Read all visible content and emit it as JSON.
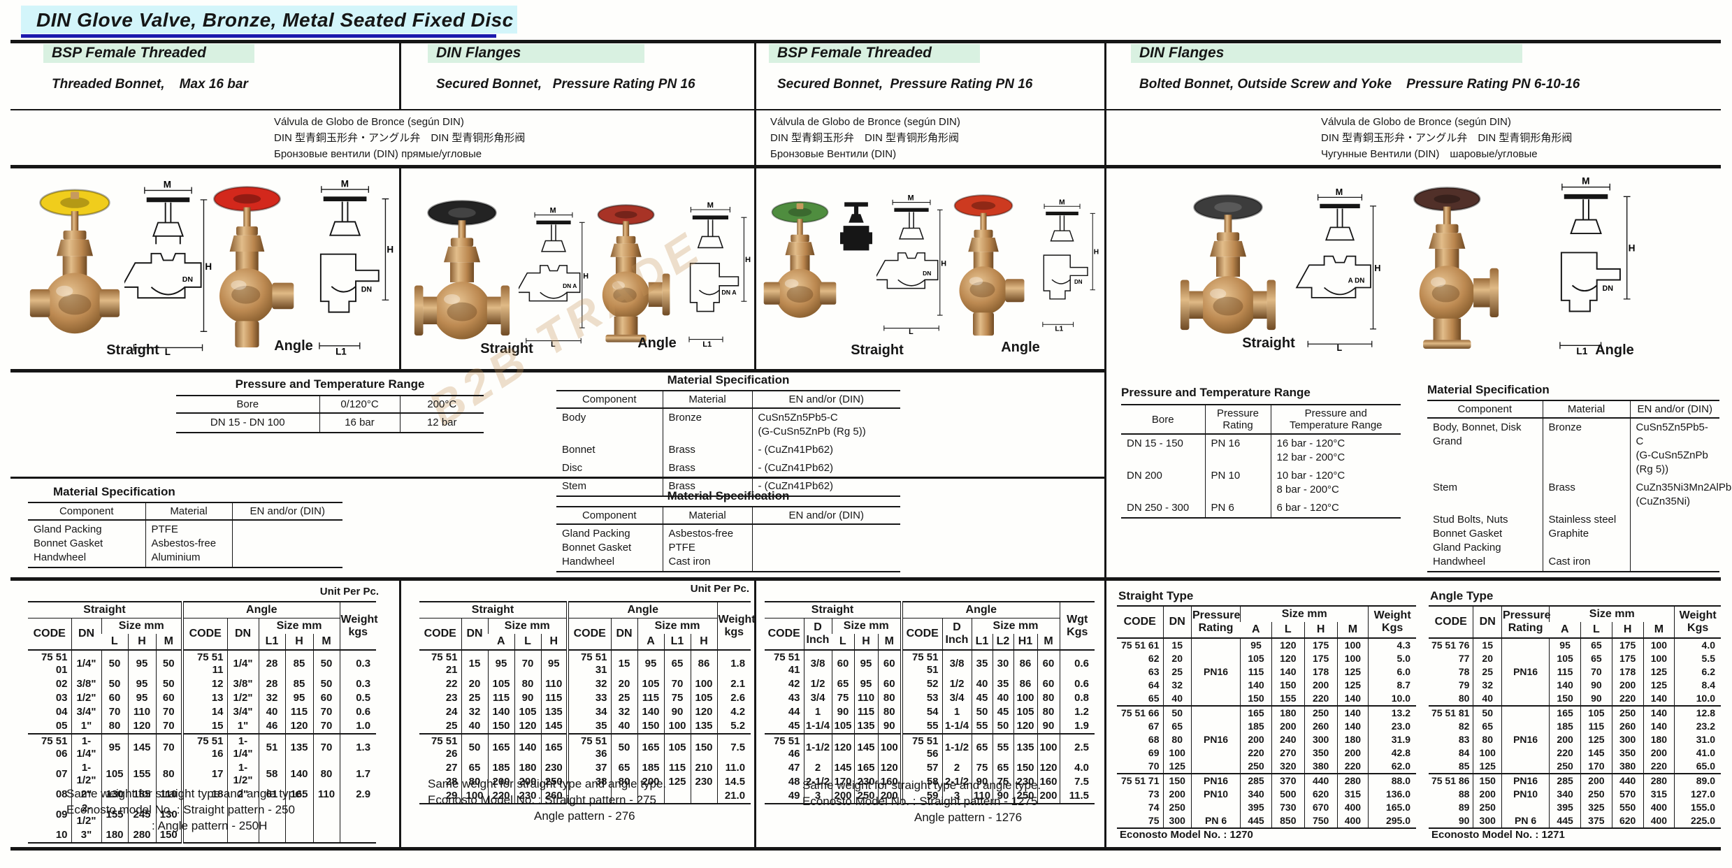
{
  "title": "DIN Glove Valve,  Bronze, Metal Seated Fixed Disc",
  "watermark": "B2B TRADE",
  "columns": [
    {
      "name": "BSP Female Threaded",
      "subtitle": "Threaded Bonnet,    Max 16 bar",
      "description": "Válvula de Globo de Bronce (según DIN)\nDIN 型青銅玉形弁・アングル弁　DIN 型青铜形角形阀\nБронзовые вентили (DIN) прямые/угловые",
      "figures": {
        "straight_caption": "Straight",
        "angle_caption": "Angle",
        "straight_wheel": "#f0cd1c",
        "angle_wheel": "#d3281c"
      },
      "drawing": {
        "s_m": "M",
        "s_h": "H",
        "s_l": "L",
        "s_dn": "DN",
        "a_m": "M",
        "a_h": "H",
        "a_l": "L1",
        "a_dn": "DN"
      },
      "pressure_temp": {
        "title": "Pressure and Temperature Range",
        "headers": [
          "Bore",
          "0/120°C",
          "200°C"
        ],
        "rows": [
          [
            "DN 15 - DN 100",
            "16 bar",
            "12 bar"
          ]
        ]
      },
      "material": {
        "title": "Material Specification",
        "headers": [
          "Component",
          "Material",
          "EN and/or (DIN)"
        ],
        "rows": [
          [
            "Gland Packing\nBonnet Gasket\nHandwheel",
            "PTFE\nAsbestos-free\nAluminium",
            " "
          ]
        ]
      },
      "unit_label": "Unit Per Pc.",
      "size_table": {
        "straight_label": "Straight",
        "angle_label": "Angle",
        "code_label": "CODE",
        "dn_label": "DN",
        "size_label": "Size mm",
        "s_cols": [
          "L",
          "H",
          "M"
        ],
        "a_cols": [
          "L1",
          "H",
          "M"
        ],
        "weight_label": "Weight\nkgs",
        "rows1": [
          [
            "75 51 01",
            "1/4\"",
            "50",
            "95",
            "50",
            "75 51 11",
            "1/4\"",
            "28",
            "85",
            "50",
            "0.3"
          ],
          [
            "02",
            "3/8\"",
            "50",
            "95",
            "50",
            "12",
            "3/8\"",
            "28",
            "85",
            "50",
            "0.3"
          ],
          [
            "03",
            "1/2\"",
            "60",
            "95",
            "60",
            "13",
            "1/2\"",
            "32",
            "95",
            "60",
            "0.5"
          ],
          [
            "04",
            "3/4\"",
            "70",
            "110",
            "70",
            "14",
            "3/4\"",
            "40",
            "115",
            "70",
            "0.6"
          ],
          [
            "05",
            "1\"",
            "80",
            "120",
            "70",
            "15",
            "1\"",
            "46",
            "120",
            "70",
            "1.0"
          ]
        ],
        "rows2": [
          [
            "75 51 06",
            "1-1/4\"",
            "95",
            "145",
            "70",
            "75 51 16",
            "1-1/4\"",
            "51",
            "135",
            "70",
            "1.3"
          ],
          [
            "07",
            "1-1/2\"",
            "105",
            "155",
            "80",
            "17",
            "1-1/2\"",
            "58",
            "140",
            "80",
            "1.7"
          ],
          [
            "08",
            "2\"",
            "130",
            "185",
            "110",
            "18",
            "2\"",
            "61",
            "165",
            "110",
            "2.9"
          ],
          [
            "09",
            "2-1/2\"",
            "155",
            "245",
            "130",
            "",
            "",
            "",
            "",
            "",
            ""
          ],
          [
            "10",
            "3\"",
            "180",
            "280",
            "150",
            "",
            "",
            "",
            "",
            "",
            ""
          ]
        ]
      },
      "footnotes": [
        "Same weight for straight type and angle type.",
        "Econosto model No. : Straight pattern - 250",
        ": Angle pattern    - 250H"
      ]
    },
    {
      "name": "DIN Flanges",
      "subtitle": "Secured Bonnet,   Pressure Rating PN 16",
      "figures": {
        "straight_caption": "Straight",
        "angle_caption": "Angle",
        "straight_wheel": "#232323",
        "angle_wheel": "#a83326"
      },
      "drawing": {
        "s_m": "M",
        "s_h": "H",
        "s_l": "L",
        "s_dn": "DN A",
        "a_m": "M",
        "a_h": "H",
        "a_l": "L1",
        "a_dn": "DN A"
      },
      "material1": {
        "title": "Material Specification",
        "headers": [
          "Component",
          "Material",
          "EN and/or (DIN)"
        ],
        "rows": [
          [
            "Body",
            "Bronze",
            "CuSn5Zn5Pb5-C\n(G-CuSn5ZnPb (Rg 5))"
          ],
          [
            "Bonnet",
            "Brass",
            "- (CuZn41Pb62)"
          ],
          [
            "Disc",
            "Brass",
            "- (CuZn41Pb62)"
          ],
          [
            "Stem",
            "Brass",
            "- (CuZn41Pb62)"
          ]
        ]
      },
      "material2": {
        "title": "Material Specification",
        "headers": [
          "Component",
          "Material",
          "EN and/or (DIN)"
        ],
        "rows": [
          [
            "Gland Packing\nBonnet Gasket\nHandwheel",
            "Asbestos-free\nPTFE\nCast iron",
            " "
          ]
        ]
      },
      "unit_label": "Unit Per Pc.",
      "size_table": {
        "straight_label": "Straight",
        "angle_label": "Angle",
        "code_label": "CODE",
        "dn_label": "DN",
        "size_label": "Size mm",
        "s_cols": [
          "A",
          "L",
          "H"
        ],
        "a_cols": [
          "A",
          "L1",
          "H"
        ],
        "weight_label": "Weight\nkgs",
        "rows1": [
          [
            "75 51 21",
            "15",
            "95",
            "70",
            "95",
            "75 51 31",
            "15",
            "95",
            "65",
            "86",
            "1.8"
          ],
          [
            "22",
            "20",
            "105",
            "80",
            "110",
            "32",
            "20",
            "105",
            "70",
            "100",
            "2.1"
          ],
          [
            "23",
            "25",
            "115",
            "90",
            "115",
            "33",
            "25",
            "115",
            "75",
            "105",
            "2.6"
          ],
          [
            "24",
            "32",
            "140",
            "105",
            "135",
            "34",
            "32",
            "140",
            "90",
            "120",
            "4.2"
          ],
          [
            "25",
            "40",
            "150",
            "120",
            "145",
            "35",
            "40",
            "150",
            "100",
            "135",
            "5.2"
          ]
        ],
        "rows2": [
          [
            "75 51 26",
            "50",
            "165",
            "140",
            "165",
            "75 51 36",
            "50",
            "165",
            "105",
            "150",
            "7.5"
          ],
          [
            "27",
            "65",
            "185",
            "180",
            "230",
            "37",
            "65",
            "185",
            "115",
            "210",
            "11.0"
          ],
          [
            "28",
            "80",
            "200",
            "200",
            "250",
            "38",
            "80",
            "200",
            "125",
            "230",
            "14.5"
          ],
          [
            "29",
            "100",
            "220",
            "230",
            "260",
            "",
            "",
            "",
            "",
            "",
            "21.0"
          ]
        ]
      },
      "footnotes": [
        "Same weight for straight type and angle type.",
        "Econosto Model No. : Straight pattern - 275",
        "Angle pattern   - 276"
      ]
    },
    {
      "name": "BSP Female Threaded",
      "subtitle": "Secured Bonnet,  Pressure Rating PN 16",
      "description": "Válvula de Globo de Bronce (según DIN)\nDIN 型青銅玉形弁　DIN 型青铜形角形阀\nБронзовые Вентили (DIN)",
      "figures": {
        "straight_caption": "Straight",
        "angle_caption": "Angle",
        "straight_wheel": "#4f8d3f",
        "angle_wheel": "#cd3a20"
      },
      "drawing": {
        "s_m": "M",
        "s_h": "H",
        "s_l": "L",
        "s_dn": "DN",
        "a_m": "M",
        "a_h": "H",
        "a_l": "L1",
        "a_dn": "DN"
      },
      "size_table": {
        "straight_label": "Straight",
        "angle_label": "Angle",
        "code_label": "CODE",
        "d_label": "D\nInch",
        "size_label": "Size mm",
        "s_cols": [
          "L",
          "H",
          "M"
        ],
        "a_cols": [
          "L1",
          "L2",
          "H1",
          "M"
        ],
        "weight_label": "Wgt\nKgs",
        "rows1": [
          [
            "75 51 41",
            "3/8",
            "60",
            "95",
            "60",
            "75 51 51",
            "3/8",
            "35",
            "30",
            "86",
            "60",
            "0.6"
          ],
          [
            "42",
            "1/2",
            "65",
            "95",
            "60",
            "52",
            "1/2",
            "40",
            "35",
            "86",
            "60",
            "0.6"
          ],
          [
            "43",
            "3/4",
            "75",
            "110",
            "80",
            "53",
            "3/4",
            "45",
            "40",
            "100",
            "80",
            "0.8"
          ],
          [
            "44",
            "1",
            "90",
            "115",
            "80",
            "54",
            "1",
            "50",
            "45",
            "105",
            "80",
            "1.2"
          ],
          [
            "45",
            "1-1/4",
            "105",
            "135",
            "90",
            "55",
            "1-1/4",
            "55",
            "50",
            "120",
            "90",
            "1.9"
          ]
        ],
        "rows2": [
          [
            "75 51 46",
            "1-1/2",
            "120",
            "145",
            "100",
            "75 51 56",
            "1-1/2",
            "65",
            "55",
            "135",
            "100",
            "2.5"
          ],
          [
            "47",
            "2",
            "145",
            "165",
            "120",
            "57",
            "2",
            "75",
            "65",
            "150",
            "120",
            "4.0"
          ],
          [
            "48",
            "2-1/2",
            "170",
            "230",
            "160",
            "58",
            "2-1/2",
            "90",
            "75",
            "230",
            "160",
            "7.5"
          ],
          [
            "49",
            "3",
            "200",
            "250",
            "200",
            "59",
            "3",
            "110",
            "90",
            "250",
            "200",
            "11.5"
          ]
        ]
      },
      "footnotes": [
        "Same weight for straight type and angle type.",
        "Econosto Model No. :  Straight pattern - 1275",
        "Angle pattern  - 1276"
      ]
    },
    {
      "name": "DIN Flanges",
      "subtitle": "Bolted Bonnet, Outside Screw and Yoke    Pressure Rating PN 6-10-16",
      "description": "Válvula de Globo de Bronce (según DIN)\nDIN 型青銅玉形弁・アングル弁　DIN 型青铜形角形阀\nЧугунные Вентили (DIN)　шаровые/угловые",
      "figures": {
        "straight_caption": "Straight",
        "angle_caption": "Angle",
        "straight_wheel": "#3c3c3c",
        "angle_wheel": "#513029"
      },
      "drawing": {
        "s_m": "M",
        "s_h": "H",
        "s_l": "L",
        "s_dn": "A DN",
        "a_m": "M",
        "a_h": "H",
        "a_l": "L1",
        "a_dn": "DN"
      },
      "pressure_temp": {
        "title": "Pressure and Temperature Range",
        "headers": [
          "Bore",
          "Pressure\nRating",
          "Pressure and\nTemperature Range"
        ],
        "rows": [
          [
            "DN 15 - 150",
            "PN 16",
            "16 bar - 120°C\n12 bar - 200°C"
          ],
          [
            "DN 200",
            "PN 10",
            "10 bar - 120°C\n8 bar - 200°C"
          ],
          [
            "DN 250 - 300",
            "PN 6",
            "6 bar - 120°C"
          ]
        ]
      },
      "material": {
        "title": "Material Specification",
        "headers": [
          "Component",
          "Material",
          "EN and/or (DIN)"
        ],
        "rows": [
          [
            "Body, Bonnet, Disk\nGrand",
            "Bronze",
            "CuSn5Zn5Pb5-C\n(G-CuSn5ZnPb (Rg 5))"
          ],
          [
            "Stem",
            "Brass",
            "CuZn35Ni3Mn2AlPb\n(CuZn35Ni)"
          ],
          [
            "Stud Bolts, Nuts\nBonnet Gasket\nGland Packing\nHandwheel",
            "Stainless steel\nGraphite\n\nCast iron",
            " "
          ]
        ]
      },
      "straight_type": {
        "title": "Straight Type",
        "code_label": "CODE",
        "dn_label": "DN",
        "pn_label": "Pressure\nRating",
        "size_label": "Size mm",
        "s_cols": [
          "A",
          "L",
          "H",
          "M"
        ],
        "weight_label": "Weight\nKgs",
        "rows1": [
          [
            "75 51 61",
            "15",
            "",
            "95",
            "120",
            "175",
            "100",
            "4.3"
          ],
          [
            "62",
            "20",
            "",
            "105",
            "120",
            "175",
            "100",
            "5.0"
          ],
          [
            "63",
            "25",
            "PN16",
            "115",
            "140",
            "178",
            "125",
            "6.0"
          ],
          [
            "64",
            "32",
            "",
            "140",
            "150",
            "200",
            "125",
            "8.7"
          ],
          [
            "65",
            "40",
            "",
            "150",
            "155",
            "220",
            "140",
            "10.0"
          ]
        ],
        "rows2": [
          [
            "75 51 66",
            "50",
            "",
            "165",
            "180",
            "250",
            "140",
            "13.2"
          ],
          [
            "67",
            "65",
            "",
            "185",
            "200",
            "260",
            "140",
            "23.0"
          ],
          [
            "68",
            "80",
            "PN16",
            "200",
            "240",
            "300",
            "180",
            "31.9"
          ],
          [
            "69",
            "100",
            "",
            "220",
            "270",
            "350",
            "200",
            "42.8"
          ],
          [
            "70",
            "125",
            "",
            "250",
            "320",
            "380",
            "220",
            "62.0"
          ]
        ],
        "rows3": [
          [
            "75 51 71",
            "150",
            "PN16",
            "285",
            "370",
            "440",
            "280",
            "88.0"
          ],
          [
            "73",
            "200",
            "PN10",
            "340",
            "500",
            "620",
            "315",
            "136.0"
          ],
          [
            "74",
            "250",
            "",
            "395",
            "730",
            "670",
            "400",
            "165.0"
          ],
          [
            "75",
            "300",
            "PN 6",
            "445",
            "850",
            "750",
            "400",
            "295.0"
          ]
        ],
        "footer": "Econosto Model No. : 1270"
      },
      "angle_type": {
        "title": "Angle Type",
        "code_label": "CODE",
        "dn_label": "DN",
        "pn_label": "Pressure\nRating",
        "size_label": "Size mm",
        "s_cols": [
          "A",
          "L",
          "H",
          "M"
        ],
        "weight_label": "Weight\nKgs",
        "rows1": [
          [
            "75 51 76",
            "15",
            "",
            "95",
            "65",
            "175",
            "100",
            "4.0"
          ],
          [
            "77",
            "20",
            "",
            "105",
            "65",
            "175",
            "100",
            "5.5"
          ],
          [
            "78",
            "25",
            "PN16",
            "115",
            "70",
            "178",
            "125",
            "6.2"
          ],
          [
            "79",
            "32",
            "",
            "140",
            "90",
            "200",
            "125",
            "8.4"
          ],
          [
            "80",
            "40",
            "",
            "150",
            "90",
            "220",
            "140",
            "10.0"
          ]
        ],
        "rows2": [
          [
            "75 51 81",
            "50",
            "",
            "165",
            "105",
            "250",
            "140",
            "12.8"
          ],
          [
            "82",
            "65",
            "",
            "185",
            "115",
            "260",
            "140",
            "23.2"
          ],
          [
            "83",
            "80",
            "PN16",
            "200",
            "125",
            "300",
            "180",
            "31.0"
          ],
          [
            "84",
            "100",
            "",
            "220",
            "145",
            "350",
            "200",
            "41.0"
          ],
          [
            "85",
            "125",
            "",
            "250",
            "170",
            "380",
            "220",
            "65.0"
          ]
        ],
        "rows3": [
          [
            "75 51 86",
            "150",
            "PN16",
            "285",
            "200",
            "440",
            "280",
            "89.0"
          ],
          [
            "88",
            "200",
            "PN10",
            "340",
            "250",
            "570",
            "315",
            "127.0"
          ],
          [
            "89",
            "250",
            "",
            "395",
            "325",
            "550",
            "400",
            "155.0"
          ],
          [
            "90",
            "300",
            "PN 6",
            "445",
            "375",
            "620",
            "400",
            "225.0"
          ]
        ],
        "footer": "Econosto Model No. : 1271"
      }
    }
  ]
}
